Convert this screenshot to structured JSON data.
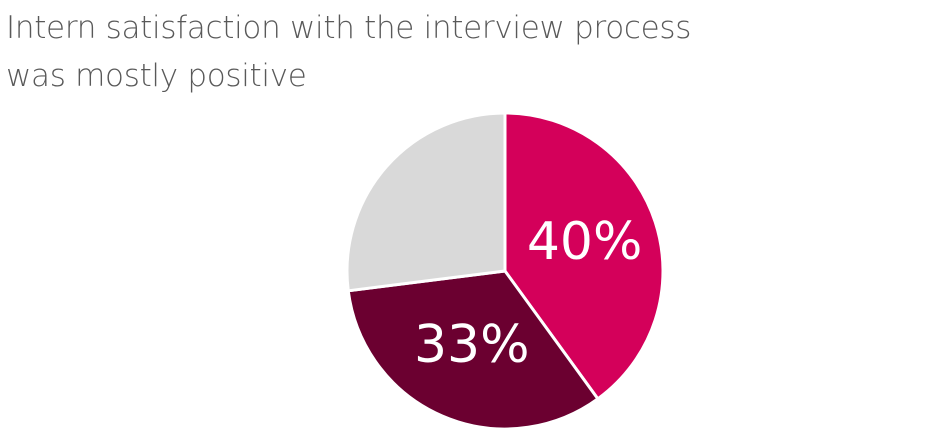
{
  "chart_data": {
    "type": "pie",
    "title": "Intern satisfaction with the interview process was mostly positive",
    "values": [
      40,
      33,
      27
    ],
    "value_labels": [
      "40%",
      "33%",
      null
    ],
    "colors": [
      "#d4005a",
      "#6b0030",
      "#d9d9d9"
    ],
    "start_angle": 0,
    "direction": "clockwise"
  }
}
